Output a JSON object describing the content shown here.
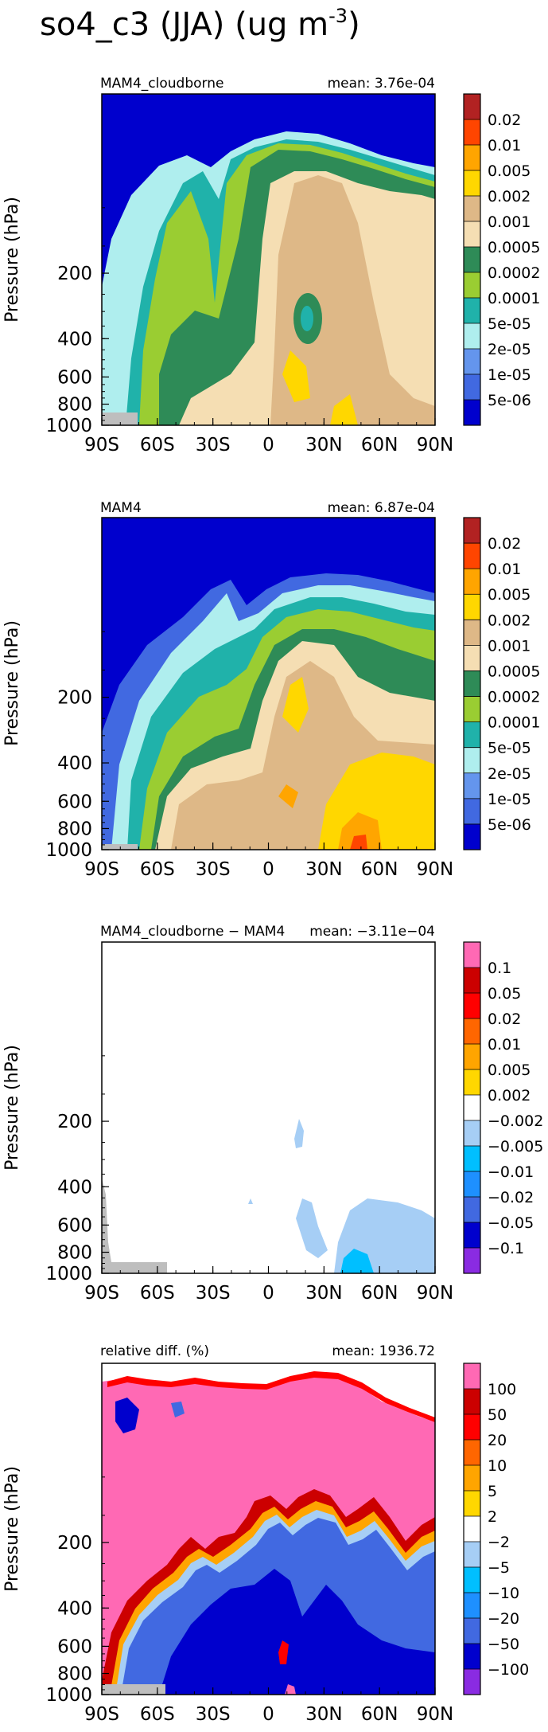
{
  "figure_title": "so4_c3 (JJA) (ug m",
  "figure_title_exp": "-3",
  "figure_title_close": ")",
  "common": {
    "ylabel": "Pressure (hPa)",
    "y_ticks": [
      "1000",
      "800",
      "600",
      "400",
      "200"
    ],
    "y_tick_values": [
      1000,
      800,
      600,
      400,
      200
    ],
    "x_ticks": [
      "90S",
      "60S",
      "30S",
      "0",
      "30N",
      "60N",
      "90N"
    ],
    "x_tick_values": [
      -90,
      -60,
      -30,
      0,
      30,
      60,
      90
    ],
    "xlim": [
      -90,
      90
    ],
    "ylim": [
      1000,
      30
    ]
  },
  "chart_data": [
    {
      "type": "heatmap",
      "left_title": "MAM4_cloudborne",
      "right_title": "mean: 3.76e-04",
      "background": "#0000cd",
      "colorbar": {
        "labels": [
          "0.02",
          "0.01",
          "0.005",
          "0.002",
          "0.001",
          "0.0005",
          "0.0002",
          "0.0001",
          "5e-05",
          "2e-05",
          "1e-05",
          "5e-06"
        ],
        "colors": [
          "#b22222",
          "#ff4500",
          "#ffa500",
          "#ffd700",
          "#deb887",
          "#f5deb3",
          "#2e8b57",
          "#9acd32",
          "#20b2aa",
          "#afeeee",
          "#6495ed",
          "#4169e1",
          "#0000cd"
        ]
      }
    },
    {
      "type": "heatmap",
      "left_title": "MAM4",
      "right_title": "mean: 6.87e-04",
      "background": "#0000cd",
      "colorbar": {
        "labels": [
          "0.02",
          "0.01",
          "0.005",
          "0.002",
          "0.001",
          "0.0005",
          "0.0002",
          "0.0001",
          "5e-05",
          "2e-05",
          "1e-05",
          "5e-06"
        ],
        "colors": [
          "#b22222",
          "#ff4500",
          "#ffa500",
          "#ffd700",
          "#deb887",
          "#f5deb3",
          "#2e8b57",
          "#9acd32",
          "#20b2aa",
          "#afeeee",
          "#6495ed",
          "#4169e1",
          "#0000cd"
        ]
      }
    },
    {
      "type": "heatmap",
      "left_title": "MAM4_cloudborne − MAM4",
      "right_title": "mean: −3.11e−04",
      "background": "#ffffff",
      "colorbar": {
        "labels": [
          "0.1",
          "0.05",
          "0.02",
          "0.01",
          "0.005",
          "0.002",
          "−0.002",
          "−0.005",
          "−0.01",
          "−0.02",
          "−0.05",
          "−0.1"
        ],
        "colors": [
          "#ff69b4",
          "#cc0000",
          "#ff0000",
          "#ff6600",
          "#ffa500",
          "#ffd700",
          "#ffffff",
          "#a6cef5",
          "#00bfff",
          "#1e90ff",
          "#4169e1",
          "#0000cd",
          "#8a2be2"
        ]
      }
    },
    {
      "type": "heatmap",
      "left_title": "relative diff. (%)",
      "right_title": "mean: 1936.72",
      "background": "#ff69b4",
      "colorbar": {
        "labels": [
          "100",
          "50",
          "20",
          "10",
          "5",
          "2",
          "−2",
          "−5",
          "−10",
          "−20",
          "−50",
          "−100"
        ],
        "colors": [
          "#ff69b4",
          "#cc0000",
          "#ff0000",
          "#ff6600",
          "#ffa500",
          "#ffd700",
          "#ffffff",
          "#a6cef5",
          "#00bfff",
          "#1e90ff",
          "#4169e1",
          "#0000cd",
          "#8a2be2"
        ]
      }
    }
  ]
}
